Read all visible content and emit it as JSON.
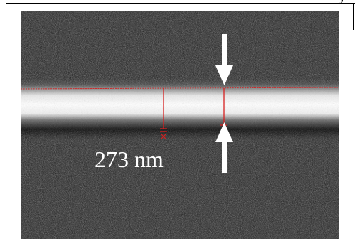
{
  "top_fragment": "y",
  "micrograph": {
    "measurement_label": "273 nm"
  },
  "colors": {
    "background": "#1b1b1b",
    "fiber": "#ffffff",
    "trace": "#d62020",
    "arrow": "#ffffff",
    "label": "#ffffff"
  }
}
